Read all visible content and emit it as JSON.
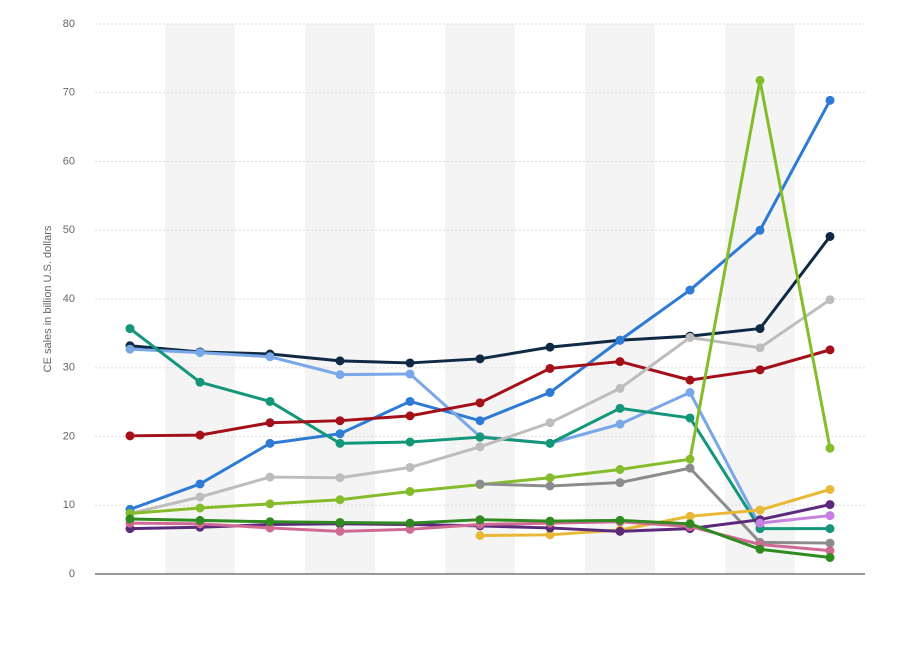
{
  "chart_data": {
    "type": "line",
    "y_label": "CE sales in billion U.S. dollars",
    "categories": [
      null,
      null,
      null,
      null,
      null,
      null,
      null,
      null,
      null,
      null,
      null
    ],
    "ylim": [
      0,
      80
    ],
    "yticks": [
      0,
      10,
      20,
      30,
      40,
      50,
      60,
      70,
      80
    ],
    "grid": true,
    "series": [
      {
        "color": "#0f2a44",
        "values": [
          33.2,
          32.3,
          32,
          31,
          30.7,
          31.3,
          33,
          34,
          34.6,
          35.7,
          49.1
        ]
      },
      {
        "color": "#2e7bd6",
        "values": [
          9.4,
          13.1,
          19,
          20.4,
          25.1,
          22.3,
          26.4,
          34,
          41.3,
          50,
          68.9
        ]
      },
      {
        "color": "#7aa7e8",
        "values": [
          32.7,
          32.2,
          31.6,
          29,
          29.1,
          20,
          19,
          21.8,
          26.4,
          7,
          null
        ]
      },
      {
        "color": "#14967a",
        "values": [
          35.7,
          27.9,
          25.1,
          19,
          19.2,
          19.9,
          19,
          24.1,
          22.7,
          6.6,
          6.6
        ]
      },
      {
        "color": "#a3101a",
        "values": [
          20.1,
          20.2,
          22,
          22.3,
          23,
          24.9,
          29.9,
          30.9,
          28.2,
          29.7,
          32.6
        ]
      },
      {
        "color": "#bdbdbd",
        "values": [
          8.8,
          11.2,
          14.1,
          14,
          15.5,
          18.5,
          22,
          27,
          34.4,
          32.9,
          39.9
        ]
      },
      {
        "color": "#84bc2b",
        "values": [
          8.8,
          9.6,
          10.2,
          10.8,
          12,
          13,
          14,
          15.2,
          16.7,
          71.8,
          18.3
        ]
      },
      {
        "color": "#8c8c8c",
        "values": [
          null,
          null,
          null,
          null,
          null,
          13.1,
          12.8,
          13.3,
          15.4,
          4.6,
          4.5
        ]
      },
      {
        "color": "#e8b836",
        "values": [
          null,
          null,
          null,
          null,
          null,
          5.6,
          5.7,
          6.4,
          8.4,
          9.3,
          12.3
        ]
      },
      {
        "color": "#5b2a7a",
        "values": [
          6.6,
          6.8,
          7.2,
          7.3,
          7.2,
          7,
          6.7,
          6.2,
          6.6,
          7.9,
          10.1
        ]
      },
      {
        "color": "#d06a94",
        "values": [
          7.4,
          7.3,
          6.7,
          6.2,
          6.5,
          7.2,
          7.4,
          7.6,
          6.9,
          4.3,
          3.4
        ]
      },
      {
        "color": "#2f8a1f",
        "values": [
          8,
          7.8,
          7.6,
          7.5,
          7.4,
          7.9,
          7.7,
          7.8,
          7.3,
          3.6,
          2.4
        ]
      },
      {
        "color": "#c77fe0",
        "values": [
          null,
          null,
          null,
          null,
          null,
          null,
          null,
          null,
          null,
          7.4,
          8.5
        ]
      }
    ]
  }
}
